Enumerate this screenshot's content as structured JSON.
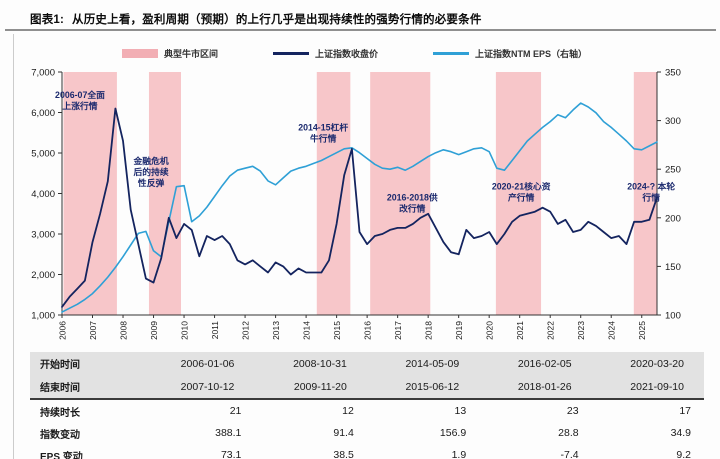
{
  "figure": {
    "label": "图表1:",
    "title": "从历史上看，盈利周期（预期）的上行几乎是出现持续性的强势行情的必要条件"
  },
  "legend": [
    {
      "label": "典型牛市区间",
      "swatch": "band",
      "color": "#f2aeb4"
    },
    {
      "label": "上证指数收盘价",
      "swatch": "line",
      "color": "#14245f"
    },
    {
      "label": "上证指数NTM EPS（右轴）",
      "swatch": "line",
      "color": "#2fa0d6"
    }
  ],
  "chart_data": {
    "type": "line",
    "title": "从历史上看，盈利周期（预期）的上行几乎是出现持续性的强势行情的必要条件",
    "x_range": [
      2006,
      2025.5
    ],
    "x_ticks": [
      "2006",
      "2007",
      "2008",
      "2009",
      "2010",
      "2011",
      "2012",
      "2013",
      "2014",
      "2015",
      "2016",
      "2017",
      "2018",
      "2019",
      "2020",
      "2021",
      "2022",
      "2023",
      "2024",
      "2025"
    ],
    "left_axis": {
      "min": 1000,
      "max": 7000,
      "tick_labels": [
        "1,000",
        "2,000",
        "3,000",
        "4,000",
        "5,000",
        "6,000",
        "7,000"
      ]
    },
    "right_axis": {
      "min": 100,
      "max": 350,
      "tick_labels": [
        "100",
        "150",
        "200",
        "250",
        "300",
        "350"
      ]
    },
    "band_color": "#f7c6c9",
    "bands": [
      {
        "from": 2006.05,
        "to": 2007.8
      },
      {
        "from": 2008.85,
        "to": 2009.9
      },
      {
        "from": 2014.35,
        "to": 2015.45
      },
      {
        "from": 2016.1,
        "to": 2018.07
      },
      {
        "from": 2020.22,
        "to": 2021.7
      },
      {
        "from": 2024.74,
        "to": 2025.5
      }
    ],
    "series": [
      {
        "name": "上证指数NTM EPS（右轴）",
        "axis": "right",
        "color": "#2fa0d6",
        "width": 1.6,
        "x_start": 2006,
        "x_step": 0.25,
        "values": [
          103,
          107,
          111,
          116,
          122,
          130,
          139,
          149,
          160,
          172,
          184,
          186,
          166,
          160,
          196,
          232,
          233,
          196,
          202,
          211,
          222,
          233,
          243,
          249,
          251,
          253,
          248,
          238,
          234,
          241,
          248,
          251,
          253,
          256,
          259,
          263,
          267,
          271,
          272,
          267,
          261,
          255,
          251,
          250,
          252,
          249,
          253,
          258,
          263,
          267,
          270,
          268,
          265,
          268,
          271,
          272,
          268,
          251,
          249,
          259,
          269,
          279,
          286,
          293,
          299,
          306,
          303,
          311,
          318,
          314,
          308,
          299,
          293,
          286,
          279,
          271,
          270,
          274,
          278
        ]
      },
      {
        "name": "上证指数收盘价",
        "axis": "left",
        "color": "#14245f",
        "width": 1.8,
        "x_start": 2006,
        "x_step": 0.25,
        "values": [
          1200,
          1450,
          1650,
          1850,
          2800,
          3500,
          4300,
          6100,
          5300,
          3600,
          2750,
          1900,
          1800,
          2400,
          3400,
          2900,
          3250,
          3100,
          2450,
          2950,
          2850,
          2950,
          2750,
          2350,
          2250,
          2350,
          2200,
          2050,
          2300,
          2200,
          2000,
          2150,
          2050,
          2050,
          2050,
          2350,
          3250,
          4450,
          5100,
          3050,
          2750,
          2950,
          3000,
          3100,
          3150,
          3150,
          3250,
          3400,
          3500,
          3150,
          2800,
          2550,
          2500,
          3100,
          2900,
          2950,
          3050,
          2750,
          3000,
          3300,
          3450,
          3500,
          3550,
          3650,
          3550,
          3250,
          3350,
          3050,
          3100,
          3300,
          3200,
          3050,
          2900,
          2950,
          2750,
          3300,
          3300,
          3350,
          3900
        ]
      }
    ],
    "annotations": [
      {
        "lines": [
          "2006-07全面",
          "上涨行情"
        ],
        "x": 2006.59,
        "y": 6300
      },
      {
        "lines": [
          "金融危机",
          "后的持续",
          "性反弹"
        ],
        "x": 2008.92,
        "y": 4530
      },
      {
        "lines": [
          "2014-15杠杆",
          "牛行情"
        ],
        "x": 2014.56,
        "y": 5490
      },
      {
        "lines": [
          "2016-2018供",
          "改行情"
        ],
        "x": 2017.48,
        "y": 3770
      },
      {
        "lines": [
          "2020-21核心资",
          "产行情"
        ],
        "x": 2021.05,
        "y": 4040
      },
      {
        "lines": [
          "2024-? 本轮",
          "行情"
        ],
        "x": 2025.31,
        "y": 4040
      }
    ]
  },
  "table": {
    "rows": [
      {
        "label": "开始时间",
        "kind": "date",
        "values": [
          "2006-01-06",
          "2008-10-31",
          "2014-05-09",
          "2016-02-05",
          "2020-03-20"
        ]
      },
      {
        "label": "结束时间",
        "kind": "date",
        "values": [
          "2007-10-12",
          "2009-11-20",
          "2015-06-12",
          "2018-01-26",
          "2021-09-10"
        ]
      },
      {
        "label": "持续时长",
        "kind": "num",
        "values": [
          "21",
          "12",
          "13",
          "23",
          "17"
        ]
      },
      {
        "label": "指数变动",
        "kind": "num",
        "values": [
          "388.1",
          "91.4",
          "156.9",
          "28.8",
          "34.9"
        ]
      },
      {
        "label": "EPS 变动",
        "kind": "num",
        "values": [
          "73.1",
          "38.5",
          "1.9",
          "-7.4",
          "9.2"
        ]
      }
    ]
  }
}
